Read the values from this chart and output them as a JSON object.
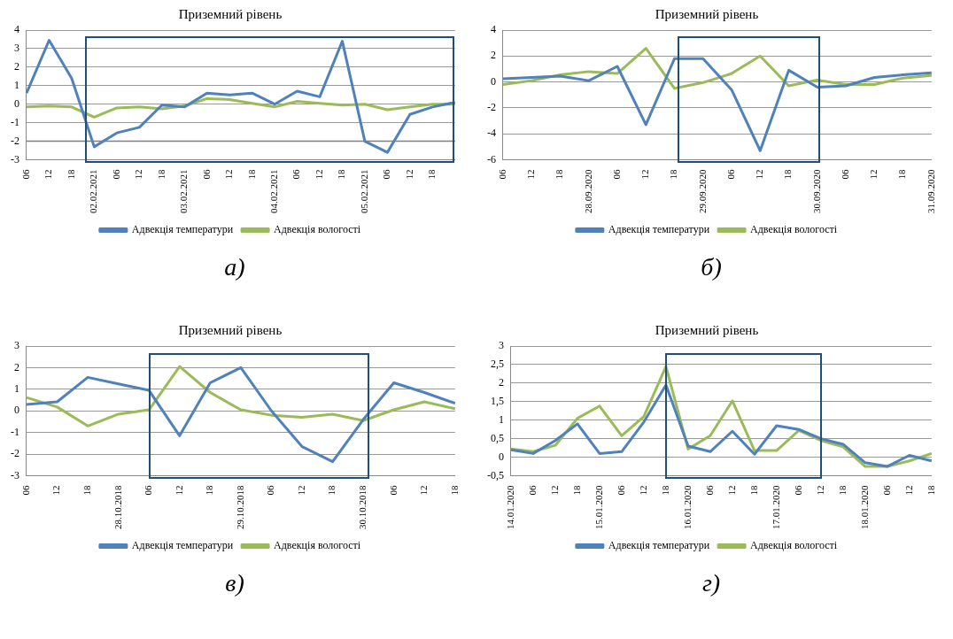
{
  "chart_data": [
    {
      "type": "line",
      "title": "Приземний рівень",
      "categories": [
        "06",
        "12",
        "18",
        "02.02.2021",
        "06",
        "12",
        "18",
        "03.02.2021",
        "06",
        "12",
        "18",
        "04.02.2021",
        "06",
        "12",
        "18",
        "05.02.2021",
        "06",
        "12",
        "18",
        null
      ],
      "series": [
        {
          "name": "Адвекція температури",
          "color": "#4f81bd",
          "values": [
            0.6,
            3.45,
            1.4,
            -2.3,
            -1.55,
            -1.25,
            -0.05,
            -0.15,
            0.6,
            0.5,
            0.6,
            0.0,
            0.7,
            0.4,
            3.4,
            -2.0,
            -2.6,
            -0.55,
            -0.15,
            0.1
          ]
        },
        {
          "name": "Адвекція вологості",
          "color": "#9bbb59",
          "values": [
            -0.15,
            -0.1,
            -0.15,
            -0.7,
            -0.2,
            -0.15,
            -0.25,
            -0.1,
            0.3,
            0.25,
            0.05,
            -0.15,
            0.15,
            0.05,
            -0.05,
            0.0,
            -0.3,
            -0.15,
            0.0,
            0.0
          ]
        }
      ],
      "ylim": [
        -3,
        4
      ],
      "yticks": [
        -3,
        -2,
        -1,
        0,
        1,
        2,
        3,
        4
      ],
      "grid": "y",
      "legend": "bottom",
      "marker": "none",
      "line_style": "solid",
      "ref_lines": [
        {
          "axis": "y",
          "value": -2,
          "color": "#7f7f7f"
        }
      ],
      "annotations": [
        "а)"
      ]
    },
    {
      "type": "line",
      "title": "Приземний рівень",
      "categories": [
        "06",
        "12",
        "18",
        "28.09.2020",
        "06",
        "12",
        "18",
        "29.09.2020",
        "06",
        "12",
        "18",
        "30.09.2020",
        "06",
        "12",
        "18",
        "31.09.2020"
      ],
      "series": [
        {
          "name": "Адвекція температури",
          "color": "#4f81bd",
          "values": [
            0.25,
            0.35,
            0.45,
            0.1,
            1.2,
            -3.3,
            1.8,
            1.8,
            -0.6,
            -5.3,
            0.9,
            -0.4,
            -0.3,
            0.35,
            0.55,
            0.7
          ]
        },
        {
          "name": "Адвекція вологості",
          "color": "#9bbb59",
          "values": [
            -0.2,
            0.1,
            0.55,
            0.8,
            0.65,
            2.6,
            -0.5,
            -0.05,
            0.65,
            2.0,
            -0.3,
            0.15,
            -0.2,
            -0.2,
            0.3,
            0.5
          ]
        }
      ],
      "ylim": [
        -6,
        4
      ],
      "yticks": [
        -6,
        -4,
        -2,
        0,
        2,
        4
      ],
      "grid": "y",
      "legend": "bottom",
      "marker": "none",
      "line_style": "solid",
      "annotations": [
        "б)"
      ]
    },
    {
      "type": "line",
      "title": "Приземний рівень",
      "categories": [
        "06",
        "12",
        "18",
        "28.10.2018",
        "06",
        "12",
        "18",
        "29.10.2018",
        "06",
        "12",
        "18",
        "30.10.2018",
        "06",
        "12",
        "18"
      ],
      "series": [
        {
          "name": "Адвекція температури",
          "color": "#4f81bd",
          "values": [
            0.3,
            0.42,
            1.55,
            1.25,
            0.95,
            -1.15,
            1.3,
            2.0,
            0.0,
            -1.65,
            -2.35,
            -0.4,
            1.3,
            0.85,
            0.35
          ]
        },
        {
          "name": "Адвекція вологості",
          "color": "#9bbb59",
          "values": [
            0.62,
            0.18,
            -0.7,
            -0.15,
            0.05,
            2.05,
            0.85,
            0.05,
            -0.2,
            -0.3,
            -0.15,
            -0.45,
            0.05,
            0.42,
            0.1
          ]
        }
      ],
      "ylim": [
        -3,
        3
      ],
      "yticks": [
        -3,
        -2,
        -1,
        0,
        1,
        2,
        3
      ],
      "grid": "y",
      "legend": "bottom",
      "marker": "none",
      "line_style": "solid",
      "annotations": [
        "в)"
      ]
    },
    {
      "type": "line",
      "title": "Приземний рівень",
      "categories": [
        "14.01.2020",
        "06",
        "12",
        "18",
        "15.01.2020",
        "06",
        "12",
        "18",
        "16.01.2020",
        "06",
        "12",
        "18",
        "17.01.2020",
        "06",
        "12",
        "18",
        "18.01.2020",
        "06",
        "12",
        "18"
      ],
      "series": [
        {
          "name": "Адвекція температури",
          "color": "#4f81bd",
          "values": [
            0.2,
            0.1,
            0.45,
            0.9,
            0.1,
            0.15,
            0.95,
            1.95,
            0.3,
            0.15,
            0.7,
            0.08,
            0.85,
            0.75,
            0.5,
            0.35,
            -0.15,
            -0.25,
            0.05,
            -0.1
          ]
        },
        {
          "name": "Адвекція вологості",
          "color": "#9bbb59",
          "values": [
            0.22,
            0.15,
            0.32,
            1.05,
            1.38,
            0.58,
            1.1,
            2.45,
            0.22,
            0.58,
            1.52,
            0.18,
            0.18,
            0.72,
            0.45,
            0.28,
            -0.25,
            -0.25,
            -0.1,
            0.1
          ]
        }
      ],
      "ylim": [
        -0.5,
        3
      ],
      "yticks": [
        {
          "value": -0.5,
          "label": "-0,5"
        },
        0,
        {
          "value": 0.5,
          "label": "0,5"
        },
        1,
        {
          "value": 1.5,
          "label": "1,5"
        },
        2,
        {
          "value": 2.5,
          "label": "2,5"
        },
        3
      ],
      "grid": "y",
      "legend": "bottom",
      "marker": "none",
      "line_style": "solid",
      "annotations": [
        "г)"
      ]
    }
  ]
}
